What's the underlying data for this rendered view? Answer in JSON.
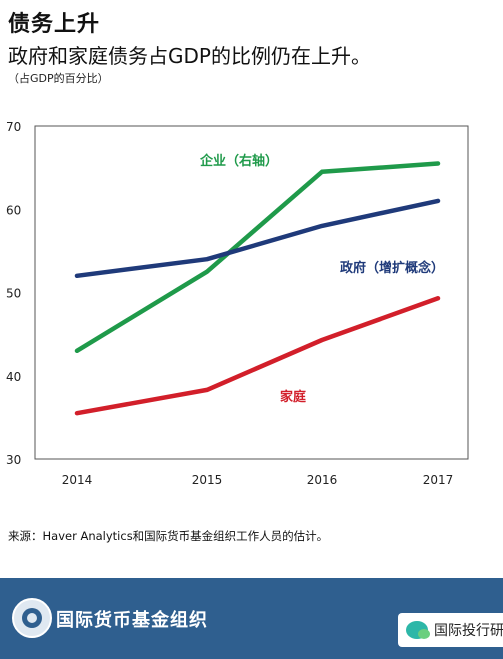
{
  "header": {
    "title": "债务上升",
    "subtitle": "政府和家庭债务占GDP的比例仍在上升。",
    "unit": "（占GDP的百分比）"
  },
  "source": "来源：Haver Analytics和国际货币基金组织工作人员的估计。",
  "footer": {
    "org_name": "国际货币基金组织",
    "watermark": "国际投行研"
  },
  "colors": {
    "enterprise": "#1f9a4a",
    "government": "#1f3a7a",
    "household": "#d21f2a",
    "footer_bg": "#2f5f8f"
  },
  "chart_data": {
    "type": "line",
    "x": [
      "2014",
      "2015",
      "2016",
      "2017"
    ],
    "ylim": [
      30,
      70
    ],
    "yticks": [
      30,
      40,
      50,
      60,
      70
    ],
    "grid": false,
    "series": [
      {
        "name": "企业（右轴）",
        "values": [
          43,
          52.5,
          64.5,
          65.5
        ],
        "color": "#1f9a4a"
      },
      {
        "name": "政府（增扩概念）",
        "values": [
          52,
          54,
          58,
          61
        ],
        "color": "#1f3a7a"
      },
      {
        "name": "家庭",
        "values": [
          35.5,
          38.3,
          44.3,
          49.3
        ],
        "color": "#d21f2a"
      }
    ]
  }
}
